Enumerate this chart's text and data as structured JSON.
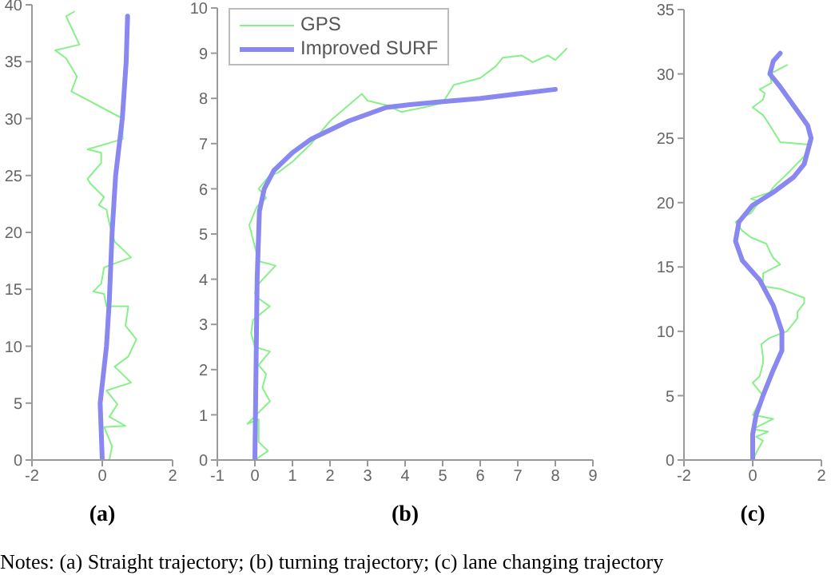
{
  "chart_data": [
    {
      "type": "line",
      "xlabel": "(a)",
      "xlim": [
        -2,
        2
      ],
      "xticks": [
        -2,
        0,
        2
      ],
      "ylim": [
        0,
        40
      ],
      "yticks": [
        0,
        5,
        10,
        15,
        20,
        25,
        30,
        35,
        40
      ],
      "legend": false,
      "series": [
        {
          "color": "#88f088",
          "x": [
            0.2,
            0.28,
            0.05,
            0.66,
            0.2,
            0.43,
            0.12,
            0.82,
            0.35,
            0.74,
            0.97,
            0.66,
            0.74,
            0.12,
            0.05,
            -0.26,
            -0.03,
            0.05,
            0.2,
            0.82,
            0.35,
            0.2,
            0.12,
            -0.1,
            0.05,
            -0.34,
            -0.42,
            -0.03,
            -0.03,
            -0.42,
            0.58,
            0.58,
            -0.88,
            -0.72,
            -1.03,
            -1.34,
            -0.65,
            -1.03,
            -0.8
          ],
          "values": [
            0,
            1.2,
            2.9,
            3,
            3.8,
            4.9,
            6.1,
            6.8,
            8.2,
            9.1,
            10.6,
            11.8,
            13.5,
            13.5,
            14.6,
            14.8,
            15.5,
            16.9,
            17.1,
            17.8,
            19.2,
            20.8,
            22,
            22.4,
            23.1,
            24.3,
            24.7,
            26.1,
            27,
            27.3,
            28.2,
            30,
            32.4,
            33.7,
            35.3,
            36,
            36.5,
            39,
            39.4
          ]
        },
        {
          "color": "#8888f0",
          "x": [
            0,
            -0.06,
            0.12,
            0.2,
            0.28,
            0.38,
            0.57,
            0.68,
            0.72
          ],
          "values": [
            0,
            5,
            10,
            14,
            20,
            25,
            30,
            35,
            39
          ]
        }
      ]
    },
    {
      "type": "line",
      "xlabel": "(b)",
      "xlim": [
        -1,
        9
      ],
      "xticks": [
        -1,
        0,
        1,
        2,
        3,
        4,
        5,
        6,
        7,
        8,
        9
      ],
      "ylim": [
        0,
        10
      ],
      "yticks": [
        0,
        1,
        2,
        3,
        4,
        5,
        6,
        7,
        8,
        9,
        10
      ],
      "legend": "top left",
      "series": [
        {
          "name": "GPS",
          "color": "#88f088",
          "x": [
            0,
            0.35,
            0.1,
            0.1,
            -0.2,
            0.4,
            0.2,
            0.3,
            0.1,
            0.4,
            0,
            -0.1,
            -0.05,
            0.4,
            0.05,
            0,
            0.1,
            0.55,
            0.1,
            -0.15,
            0.05,
            0.3,
            0.1,
            0.4,
            0.6,
            1,
            1.5,
            2,
            2.85,
            3,
            3.5,
            3.9,
            4.5,
            5,
            5.3,
            6,
            6.4,
            6.6,
            7.1,
            7.4,
            7.8,
            8,
            8.3
          ],
          "values": [
            0,
            0.2,
            0.4,
            0.9,
            0.8,
            1.3,
            1.6,
            1.9,
            2.1,
            2.4,
            2.5,
            2.8,
            3.1,
            3.4,
            3.6,
            3.7,
            3.9,
            4.3,
            4.4,
            5.2,
            5.6,
            5.8,
            6,
            6.3,
            6.35,
            6.6,
            7,
            7.5,
            8.1,
            7.95,
            7.85,
            7.7,
            7.8,
            7.9,
            8.3,
            8.45,
            8.7,
            8.9,
            8.95,
            8.8,
            8.95,
            8.85,
            9.1
          ]
        },
        {
          "name": "Improved SURF",
          "color": "#8888f0",
          "x": [
            0,
            0.03,
            0.06,
            0.12,
            0.25,
            0.5,
            1,
            1.5,
            2,
            2.5,
            3,
            3.5,
            4,
            5,
            6,
            7,
            8
          ],
          "values": [
            0,
            2,
            4,
            5.5,
            6,
            6.4,
            6.8,
            7.1,
            7.3,
            7.5,
            7.65,
            7.8,
            7.85,
            7.93,
            8,
            8.1,
            8.2
          ]
        }
      ]
    },
    {
      "type": "line",
      "xlabel": "(c)",
      "xlim": [
        -2,
        2
      ],
      "xticks": [
        -2,
        0,
        2
      ],
      "ylim": [
        0,
        35
      ],
      "yticks": [
        0,
        5,
        10,
        15,
        20,
        25,
        30,
        35
      ],
      "legend": false,
      "annotations": [
        "Notes: (a) Straight trajectory; (b) turning trajectory; (c) lane changing trajectory"
      ],
      "series": [
        {
          "color": "#88f088",
          "x": [
            0,
            0.15,
            0.3,
            0.1,
            0.45,
            0,
            0.6,
            0,
            0.2,
            0.3,
            0,
            0.2,
            0.3,
            0.3,
            0.25,
            0.5,
            1,
            1.3,
            1.3,
            1.5,
            1.5,
            0.8,
            0.3,
            0.3,
            0.8,
            0.6,
            0.5,
            0.4,
            -0.05,
            -0.3,
            -0.5,
            -0.05,
            0.2,
            -0.05,
            0.5,
            0.6,
            1.1,
            1.5,
            1.6,
            1.7,
            0.8,
            0.5,
            0.3,
            0,
            0.3,
            0.35,
            0.2,
            0.55,
            0.5,
            1
          ],
          "values": [
            0,
            0.8,
            1.5,
            1.8,
            2.2,
            2.4,
            3.2,
            3.5,
            4.5,
            5,
            6,
            6.5,
            7.5,
            8,
            9,
            9.5,
            10,
            11,
            11.5,
            12.2,
            12.6,
            13.3,
            13.5,
            14.5,
            15.2,
            15.7,
            16.2,
            16.8,
            17.3,
            17.8,
            18.5,
            19.2,
            20.1,
            20.3,
            20.8,
            21.2,
            22.5,
            23.6,
            24.3,
            24.5,
            24.7,
            26,
            26.8,
            27.4,
            28,
            28.5,
            28.8,
            29.3,
            30,
            30.7
          ]
        },
        {
          "color": "#8888f0",
          "x": [
            0,
            0,
            0.1,
            0.3,
            0.6,
            0.85,
            0.85,
            0.6,
            0.2,
            -0.3,
            -0.5,
            -0.4,
            0,
            0.6,
            1.2,
            1.5,
            1.7,
            1.6,
            1.2,
            0.8,
            0.5,
            0.6,
            0.8
          ],
          "values": [
            0,
            2,
            3.5,
            5,
            7,
            8.5,
            10,
            12,
            14,
            15.5,
            17,
            18.5,
            19.8,
            20.8,
            22,
            23,
            25,
            26,
            27.5,
            29,
            30,
            31,
            31.6
          ]
        }
      ]
    }
  ]
}
